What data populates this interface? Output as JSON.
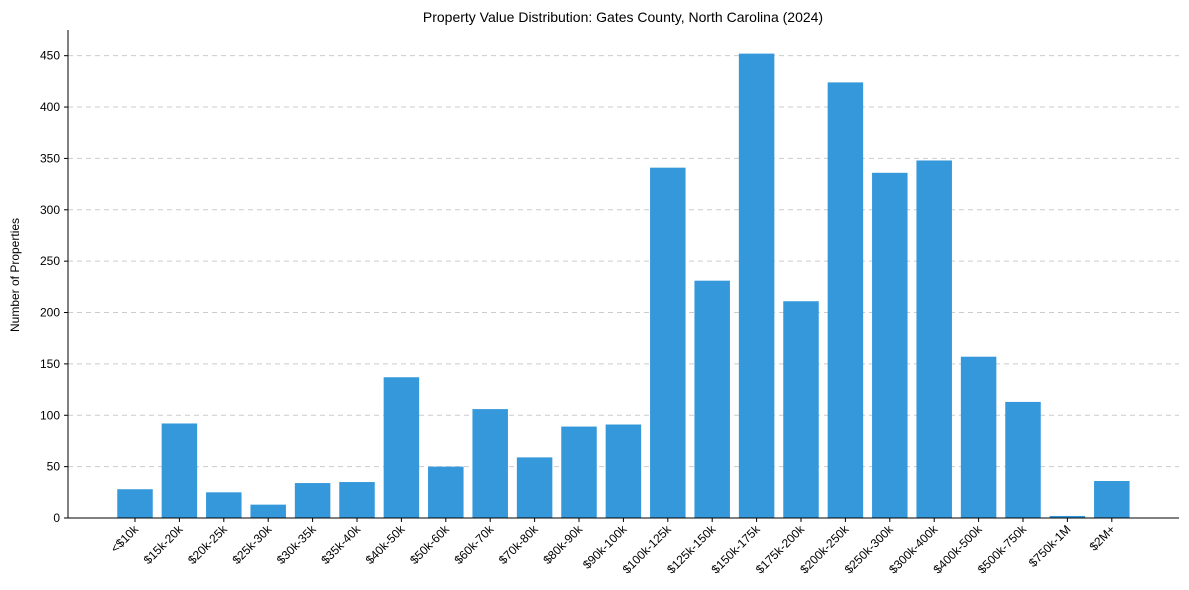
{
  "chart_data": {
    "type": "bar",
    "title": "Property Value Distribution: Gates County, North Carolina (2024)",
    "xlabel": "",
    "ylabel": "Number of Properties",
    "ylim": [
      0,
      475
    ],
    "yticks": [
      0,
      50,
      100,
      150,
      200,
      250,
      300,
      350,
      400,
      450
    ],
    "grid": "horizontal-dashed",
    "bar_color": "#3498db",
    "categories": [
      "<$10k",
      "$15k-20k",
      "$20k-25k",
      "$25k-30k",
      "$30k-35k",
      "$35k-40k",
      "$40k-50k",
      "$50k-60k",
      "$60k-70k",
      "$70k-80k",
      "$80k-90k",
      "$90k-100k",
      "$100k-125k",
      "$125k-150k",
      "$150k-175k",
      "$175k-200k",
      "$200k-250k",
      "$250k-300k",
      "$300k-400k",
      "$400k-500k",
      "$500k-750k",
      "$750k-1M",
      "$2M+"
    ],
    "values": [
      28,
      92,
      25,
      13,
      34,
      35,
      137,
      50,
      106,
      59,
      89,
      91,
      341,
      231,
      452,
      211,
      424,
      336,
      348,
      157,
      113,
      2,
      36
    ]
  }
}
